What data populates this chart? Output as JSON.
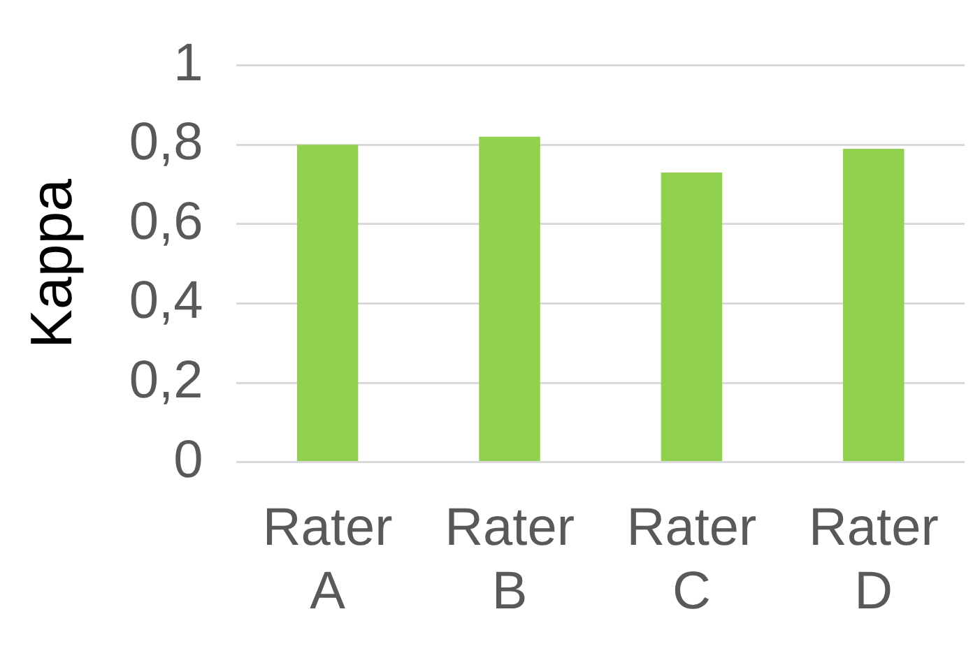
{
  "chart_data": {
    "type": "bar",
    "ylabel": "Kappa",
    "categories": [
      "Rater A",
      "Rater B",
      "Rater C",
      "Rater D"
    ],
    "values": [
      0.8,
      0.82,
      0.73,
      0.79
    ],
    "color": "#92d050",
    "ylim": [
      0,
      1
    ],
    "yticks": [
      0,
      {
        "value": 0.2,
        "label": "0,2"
      },
      {
        "value": 0.4,
        "label": "0,4"
      },
      {
        "value": 0.6,
        "label": "0,6"
      },
      {
        "value": 0.8,
        "label": "0,8"
      },
      1
    ],
    "grid": "y"
  }
}
